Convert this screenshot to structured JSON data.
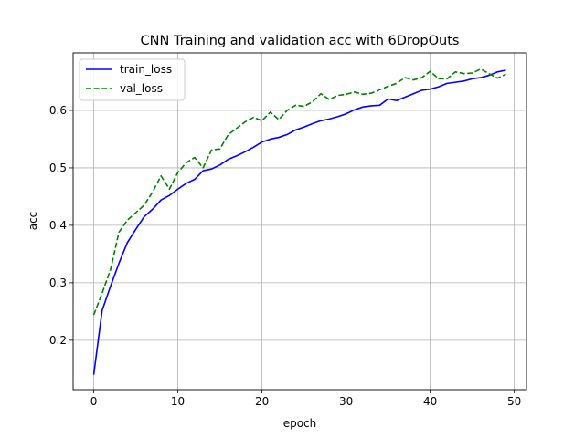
{
  "chart_data": {
    "type": "line",
    "title": "CNN Training and validation acc with 6DropOuts",
    "xlabel": "epoch",
    "ylabel": "acc",
    "xlim": [
      -2.45,
      51.45
    ],
    "ylim": [
      0.114,
      0.7
    ],
    "xticks": [
      0,
      10,
      20,
      30,
      40,
      50
    ],
    "yticks": [
      0.2,
      0.3,
      0.4,
      0.5,
      0.6
    ],
    "xtick_labels": [
      "0",
      "10",
      "20",
      "30",
      "40",
      "50"
    ],
    "ytick_labels": [
      "0.2",
      "0.3",
      "0.4",
      "0.5",
      "0.6"
    ],
    "grid": true,
    "legend_position": "upper-left",
    "x": [
      0,
      1,
      2,
      3,
      4,
      5,
      6,
      7,
      8,
      9,
      10,
      11,
      12,
      13,
      14,
      15,
      16,
      17,
      18,
      19,
      20,
      21,
      22,
      23,
      24,
      25,
      26,
      27,
      28,
      29,
      30,
      31,
      32,
      33,
      34,
      35,
      36,
      37,
      38,
      39,
      40,
      41,
      42,
      43,
      44,
      45,
      46,
      47,
      48,
      49
    ],
    "series": [
      {
        "name": "train_loss",
        "color": "#0000ff",
        "dash": "solid",
        "values": [
          0.14,
          0.252,
          0.294,
          0.334,
          0.37,
          0.393,
          0.415,
          0.428,
          0.444,
          0.452,
          0.463,
          0.473,
          0.48,
          0.495,
          0.498,
          0.505,
          0.515,
          0.521,
          0.528,
          0.536,
          0.545,
          0.55,
          0.553,
          0.558,
          0.566,
          0.571,
          0.577,
          0.582,
          0.585,
          0.589,
          0.594,
          0.601,
          0.606,
          0.608,
          0.609,
          0.62,
          0.617,
          0.623,
          0.629,
          0.635,
          0.637,
          0.641,
          0.647,
          0.649,
          0.651,
          0.655,
          0.657,
          0.661,
          0.667,
          0.67
        ]
      },
      {
        "name": "val_loss",
        "color": "#008000",
        "dash": "dashed",
        "values": [
          0.244,
          0.282,
          0.323,
          0.388,
          0.409,
          0.422,
          0.435,
          0.458,
          0.486,
          0.463,
          0.492,
          0.509,
          0.518,
          0.5,
          0.531,
          0.533,
          0.558,
          0.569,
          0.58,
          0.588,
          0.582,
          0.597,
          0.584,
          0.6,
          0.609,
          0.607,
          0.615,
          0.629,
          0.619,
          0.626,
          0.628,
          0.632,
          0.628,
          0.63,
          0.636,
          0.642,
          0.647,
          0.657,
          0.653,
          0.657,
          0.668,
          0.655,
          0.655,
          0.667,
          0.664,
          0.665,
          0.672,
          0.664,
          0.656,
          0.663
        ]
      }
    ]
  }
}
